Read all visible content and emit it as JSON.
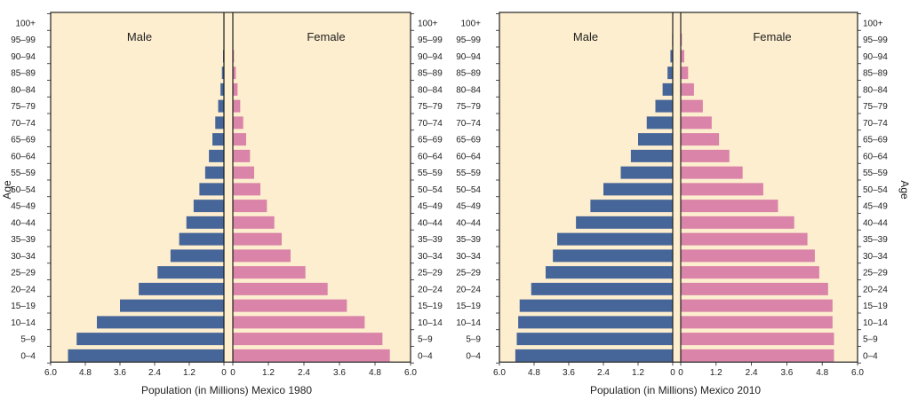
{
  "colors": {
    "background": "#fdeecf",
    "male": "#466699",
    "female": "#d984a8",
    "frame": "#222222"
  },
  "chart_data": [
    {
      "type": "bar",
      "orientation": "horizontal",
      "subtype": "population-pyramid",
      "xlabel": "Population (in Millions) Mexico 1980",
      "ylabel": "Age",
      "xlim": [
        0,
        6.0
      ],
      "xticks": [
        "6.0",
        "4.8",
        "3.6",
        "2.4",
        "1.2",
        "0",
        "0",
        "1.2",
        "2.4",
        "3.6",
        "4.8",
        "6.0"
      ],
      "categories": [
        "0–4",
        "5–9",
        "10–14",
        "15–19",
        "20–24",
        "25–29",
        "30–34",
        "35–39",
        "40–44",
        "45–49",
        "50–54",
        "55–59",
        "60–64",
        "65–69",
        "70–74",
        "75–79",
        "80–84",
        "85–89",
        "90–94",
        "95–99",
        "100+"
      ],
      "series": [
        {
          "name": "Male",
          "values": [
            5.4,
            5.1,
            4.4,
            3.6,
            2.95,
            2.3,
            1.85,
            1.55,
            1.3,
            1.05,
            0.85,
            0.65,
            0.52,
            0.4,
            0.3,
            0.2,
            0.12,
            0.07,
            0.03,
            0.01,
            0.0
          ]
        },
        {
          "name": "Female",
          "values": [
            5.3,
            5.05,
            4.45,
            3.85,
            3.2,
            2.45,
            1.95,
            1.65,
            1.4,
            1.15,
            0.93,
            0.72,
            0.58,
            0.45,
            0.35,
            0.25,
            0.16,
            0.1,
            0.04,
            0.01,
            0.0
          ]
        }
      ]
    },
    {
      "type": "bar",
      "orientation": "horizontal",
      "subtype": "population-pyramid",
      "xlabel": "Population (in Millions) Mexico 2010",
      "ylabel": "Age",
      "xlim": [
        0,
        6.0
      ],
      "xticks": [
        "6.0",
        "4.8",
        "3.6",
        "2.4",
        "1.2",
        "0",
        "0",
        "1.2",
        "2.4",
        "3.6",
        "4.8",
        "6.0"
      ],
      "categories": [
        "0–4",
        "5–9",
        "10–14",
        "15–19",
        "20–24",
        "25–29",
        "30–34",
        "35–39",
        "40–44",
        "45–49",
        "50–54",
        "55–59",
        "60–64",
        "65–69",
        "70–74",
        "75–79",
        "80–84",
        "85–89",
        "90–94",
        "95–99",
        "100+"
      ],
      "series": [
        {
          "name": "Male",
          "values": [
            5.45,
            5.4,
            5.35,
            5.3,
            4.9,
            4.4,
            4.15,
            4.0,
            3.35,
            2.85,
            2.4,
            1.8,
            1.45,
            1.2,
            0.9,
            0.6,
            0.35,
            0.18,
            0.08,
            0.02,
            0.0
          ]
        },
        {
          "name": "Female",
          "values": [
            5.2,
            5.2,
            5.15,
            5.15,
            5.0,
            4.7,
            4.55,
            4.3,
            3.85,
            3.3,
            2.8,
            2.1,
            1.65,
            1.3,
            1.05,
            0.75,
            0.45,
            0.25,
            0.12,
            0.04,
            0.0
          ]
        }
      ]
    }
  ]
}
